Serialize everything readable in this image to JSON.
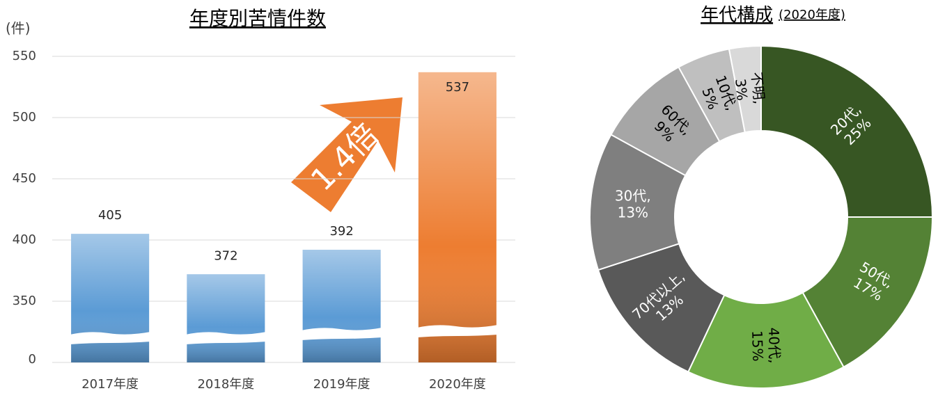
{
  "chart_data": [
    {
      "type": "bar",
      "title": "年度別苦情件数",
      "y_label": "(件)",
      "categories": [
        "2017年度",
        "2018年度",
        "2019年度",
        "2020年度"
      ],
      "values": [
        405,
        372,
        392,
        537
      ],
      "colors": [
        "#5b9bd5",
        "#5b9bd5",
        "#5b9bd5",
        "#ed7d31"
      ],
      "ylim": [
        0,
        550
      ],
      "yticks": [
        0,
        350,
        400,
        450,
        500,
        550
      ],
      "axis_break": true,
      "grid": true,
      "annotation": "1.4倍"
    },
    {
      "type": "donut",
      "title": "年代構成",
      "subtitle": "(2020年度)",
      "categories": [
        "20代,",
        "50代,",
        "40代,",
        "70代以上,",
        "30代,",
        "60代,",
        "10代,",
        "不明,"
      ],
      "values": [
        25,
        17,
        15,
        13,
        13,
        9,
        5,
        3
      ],
      "value_labels": [
        "25%",
        "17%",
        "15%",
        "13%",
        "13%",
        "9%",
        "5%",
        "3%"
      ],
      "colors": [
        "#375623",
        "#548235",
        "#70ad47",
        "#595959",
        "#7f7f7f",
        "#a6a6a6",
        "#bfbfbf",
        "#d9d9d9"
      ]
    }
  ]
}
